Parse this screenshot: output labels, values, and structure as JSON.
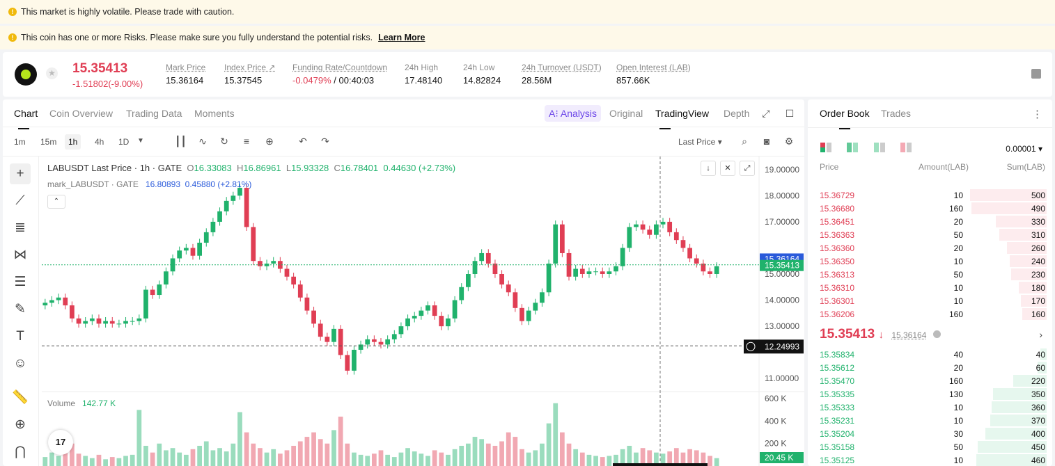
{
  "banners": {
    "volatile": "This market is highly volatile. Please trade with caution.",
    "risk": "This coin has one or more Risks. Please make sure you fully understand the potential risks.",
    "learn_more": "Learn More"
  },
  "ticker": {
    "last_price": "15.35413",
    "change": "-1.51802(-9.00%)",
    "stats": [
      {
        "label": "Mark Price",
        "value": "15.36164"
      },
      {
        "label": "Index Price ↗",
        "value": "15.37545"
      },
      {
        "label": "Funding Rate/Countdown",
        "value_red": "-0.0479%",
        "value": " / 00:40:03"
      },
      {
        "label": "24h High",
        "value": "17.48140"
      },
      {
        "label": "24h Low",
        "value": "14.82824"
      },
      {
        "label": "24h Turnover (USDT)",
        "value": "28.56M"
      },
      {
        "label": "Open Interest (LAB)",
        "value": "857.66K"
      }
    ]
  },
  "chart_tabs": [
    "Chart",
    "Coin Overview",
    "Trading Data",
    "Moments"
  ],
  "view_tabs": {
    "ai": "A⁝ Analysis",
    "original": "Original",
    "tradingview": "TradingView",
    "depth": "Depth"
  },
  "timeframes": [
    "1m",
    "15m",
    "1h",
    "4h",
    "1D"
  ],
  "price_source": "Last Price",
  "legend": {
    "symbol": "LABUSDT Last Price · 1h · GATE",
    "o_label": "O",
    "o": "16.33083",
    "h_label": "H",
    "h": "16.86961",
    "l_label": "L",
    "l": "15.93328",
    "c_label": "C",
    "c": "16.78401",
    "change": "0.44630 (+2.73%)",
    "mark_symbol": "mark_LABUSDT · GATE",
    "mark_value": "16.80893",
    "mark_change": "0.45880 (+2.81%)",
    "volume_label": "Volume",
    "volume_value": "142.77 K"
  },
  "tv_logo": "17",
  "price_badges": {
    "mark": "15.36164",
    "last": "15.35413",
    "crosshair": "12.24993",
    "volume": "20.45 K"
  },
  "chart_data": {
    "type": "candlestick",
    "y_ticks": [
      "19.00000",
      "18.00000",
      "17.00000",
      "15.00000",
      "14.00000",
      "13.00000",
      "11.00000"
    ],
    "y_range": [
      10.5,
      19.5
    ],
    "volume_ticks": [
      "600 K",
      "400 K",
      "200 K"
    ],
    "volume_range": [
      0,
      620
    ],
    "series_close": [
      13.9,
      14.0,
      14.1,
      13.8,
      13.3,
      13.1,
      13.2,
      13.3,
      13.1,
      13.2,
      13.1,
      13.1,
      13.2,
      13.2,
      13.3,
      14.4,
      14.2,
      14.6,
      15.1,
      15.6,
      15.9,
      16.0,
      15.7,
      16.2,
      16.6,
      17.0,
      17.4,
      17.8,
      18.0,
      18.3,
      16.8,
      15.5,
      15.3,
      15.4,
      15.5,
      15.2,
      14.9,
      14.6,
      14.1,
      13.6,
      13.1,
      12.6,
      12.4,
      12.9,
      11.9,
      11.3,
      12.1,
      12.3,
      12.5,
      12.4,
      12.3,
      12.5,
      12.7,
      13.0,
      13.3,
      13.4,
      13.6,
      13.8,
      13.4,
      13.0,
      13.3,
      14.0,
      14.5,
      15.0,
      15.5,
      15.8,
      15.4,
      15.0,
      14.6,
      14.3,
      13.7,
      13.2,
      13.6,
      13.9,
      14.3,
      15.4,
      16.9,
      15.8,
      14.9,
      15.2,
      15.0,
      15.1,
      15.1,
      15.0,
      15.1,
      15.3,
      16.0,
      16.8,
      16.9,
      16.7,
      16.5,
      16.9,
      17.0,
      16.6,
      16.3,
      16.0,
      15.6,
      15.4,
      15.1,
      15.0,
      15.3
    ],
    "series_open": [
      13.8,
      13.9,
      14.0,
      14.1,
      13.8,
      13.3,
      13.1,
      13.2,
      13.3,
      13.1,
      13.2,
      13.1,
      13.1,
      13.2,
      13.2,
      13.3,
      14.4,
      14.2,
      14.6,
      15.1,
      15.6,
      15.9,
      16.0,
      15.7,
      16.2,
      16.6,
      17.0,
      17.4,
      17.8,
      18.0,
      18.3,
      16.8,
      15.5,
      15.3,
      15.4,
      15.5,
      15.2,
      14.9,
      14.6,
      14.1,
      13.6,
      13.1,
      12.6,
      12.4,
      12.9,
      11.9,
      11.3,
      12.1,
      12.3,
      12.5,
      12.4,
      12.3,
      12.5,
      12.7,
      13.0,
      13.3,
      13.4,
      13.6,
      13.8,
      13.4,
      13.0,
      13.3,
      14.0,
      14.5,
      15.0,
      15.5,
      15.8,
      15.4,
      15.0,
      14.6,
      14.3,
      13.7,
      13.2,
      13.6,
      13.9,
      14.3,
      15.4,
      16.9,
      15.8,
      14.9,
      15.2,
      15.0,
      15.1,
      15.1,
      15.0,
      15.1,
      15.3,
      16.0,
      16.8,
      16.9,
      16.7,
      16.5,
      16.9,
      17.0,
      16.6,
      16.3,
      16.0,
      15.6,
      15.4,
      15.1,
      15.0
    ],
    "volume": [
      80,
      120,
      90,
      150,
      200,
      110,
      90,
      70,
      100,
      60,
      80,
      70,
      90,
      100,
      500,
      180,
      120,
      200,
      140,
      160,
      120,
      100,
      150,
      180,
      220,
      140,
      160,
      130,
      200,
      480,
      300,
      200,
      160,
      120,
      150,
      110,
      140,
      180,
      220,
      260,
      300,
      240,
      200,
      320,
      440,
      200,
      120,
      100,
      90,
      110,
      140,
      100,
      80,
      120,
      160,
      130,
      110,
      90,
      140,
      120,
      100,
      150,
      180,
      200,
      260,
      240,
      200,
      180,
      220,
      300,
      260,
      150,
      120,
      140,
      200,
      380,
      560,
      300,
      200,
      150,
      120,
      100,
      90,
      80,
      90,
      100,
      150,
      180,
      120,
      160,
      140,
      120,
      110,
      130,
      160,
      120,
      150,
      140,
      120,
      90,
      70
    ]
  },
  "orderbook": {
    "tabs": [
      "Order Book",
      "Trades"
    ],
    "precision": "0.00001 ▾",
    "headers": {
      "price": "Price",
      "amount": "Amount(LAB)",
      "sum": "Sum(LAB)"
    },
    "asks": [
      {
        "price": "15.36729",
        "amount": "10",
        "sum": "500",
        "depth": 1.0
      },
      {
        "price": "15.36680",
        "amount": "160",
        "sum": "490",
        "depth": 0.98
      },
      {
        "price": "15.36451",
        "amount": "20",
        "sum": "330",
        "depth": 0.66
      },
      {
        "price": "15.36363",
        "amount": "50",
        "sum": "310",
        "depth": 0.62
      },
      {
        "price": "15.36360",
        "amount": "20",
        "sum": "260",
        "depth": 0.52
      },
      {
        "price": "15.36350",
        "amount": "10",
        "sum": "240",
        "depth": 0.48
      },
      {
        "price": "15.36313",
        "amount": "50",
        "sum": "230",
        "depth": 0.46
      },
      {
        "price": "15.36310",
        "amount": "10",
        "sum": "180",
        "depth": 0.36
      },
      {
        "price": "15.36301",
        "amount": "10",
        "sum": "170",
        "depth": 0.34
      },
      {
        "price": "15.36206",
        "amount": "160",
        "sum": "160",
        "depth": 0.32
      }
    ],
    "mid_price": "15.35413",
    "mid_arrow": "↓",
    "mid_mark": "15.36164",
    "bids": [
      {
        "price": "15.35834",
        "amount": "40",
        "sum": "40",
        "depth": 0.08
      },
      {
        "price": "15.35612",
        "amount": "20",
        "sum": "60",
        "depth": 0.12
      },
      {
        "price": "15.35470",
        "amount": "160",
        "sum": "220",
        "depth": 0.44
      },
      {
        "price": "15.35335",
        "amount": "130",
        "sum": "350",
        "depth": 0.7
      },
      {
        "price": "15.35333",
        "amount": "10",
        "sum": "360",
        "depth": 0.72
      },
      {
        "price": "15.35231",
        "amount": "10",
        "sum": "370",
        "depth": 0.74
      },
      {
        "price": "15.35204",
        "amount": "30",
        "sum": "400",
        "depth": 0.8
      },
      {
        "price": "15.35158",
        "amount": "50",
        "sum": "450",
        "depth": 0.9
      },
      {
        "price": "15.35125",
        "amount": "10",
        "sum": "460",
        "depth": 0.92
      }
    ]
  },
  "colors": {
    "up": "#20b26c",
    "down": "#e03e54",
    "mark": "#2a5ada"
  }
}
